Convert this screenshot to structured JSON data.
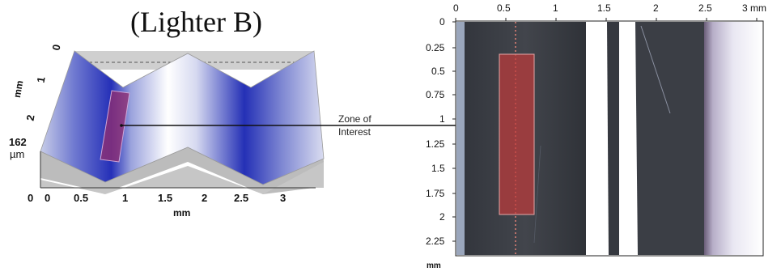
{
  "title": "(Lighter B)",
  "surface_plot": {
    "axis_unit_x": "mm",
    "axis_unit_y": "mm",
    "z_max_value": "162",
    "z_unit": "µm",
    "z_min_label": "0",
    "x_ticks": [
      "0",
      "0.5",
      "1",
      "1.5",
      "2",
      "2.5",
      "3"
    ],
    "y_ticks": [
      "0",
      "1",
      "2"
    ]
  },
  "micrograph": {
    "x_ticks": [
      "0",
      "0.5",
      "1",
      "1.5",
      "2",
      "2.5",
      "3 mm"
    ],
    "y_ticks": [
      "0",
      "0.25",
      "0.5",
      "0.75",
      "1",
      "1.25",
      "1.5",
      "1.75",
      "2",
      "2.25"
    ],
    "unit": "mm"
  },
  "annotation": {
    "line1": "Zone of",
    "line2": "Interest"
  },
  "colors": {
    "surface_dark": "#1f2bb5",
    "surface_light": "#ffffff",
    "highlight": "#c03a3a",
    "micrograph_bg": "#3e4148"
  }
}
